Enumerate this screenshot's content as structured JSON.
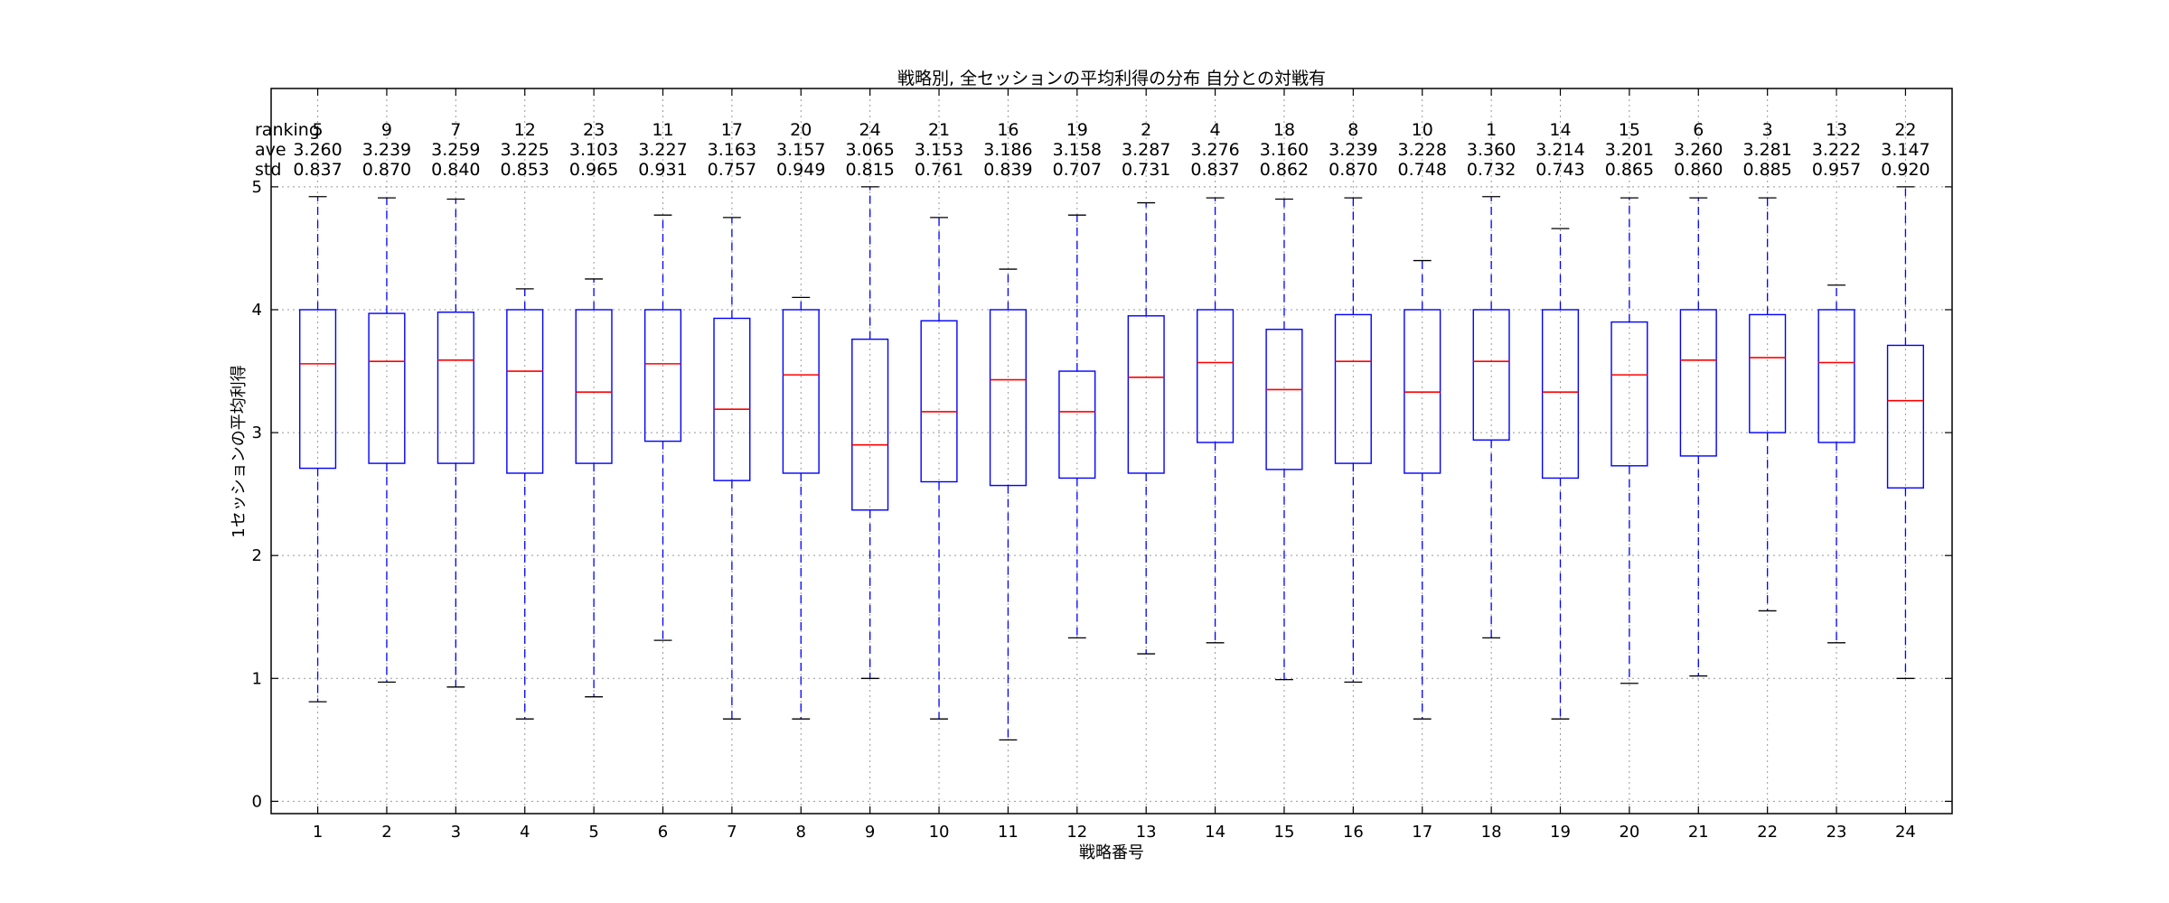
{
  "chart_data": {
    "type": "box",
    "title": "戦略別, 全セッションの平均利得の分布 自分との対戦有",
    "xlabel": "戦略番号",
    "ylabel": "1セッションの平均利得",
    "ylim": [
      -0.1,
      5.8
    ],
    "yticks": [
      0,
      1,
      2,
      3,
      4,
      5
    ],
    "grid": true,
    "colors": {
      "box": "#0000ff",
      "median": "#ff0000",
      "whisker": "#0000ff",
      "cap": "#000000",
      "grid": "#999999"
    },
    "stat_labels": {
      "ranking": "ranking",
      "ave": "ave",
      "std": "std"
    },
    "categories": [
      "1",
      "2",
      "3",
      "4",
      "5",
      "6",
      "7",
      "8",
      "9",
      "10",
      "11",
      "12",
      "13",
      "14",
      "15",
      "16",
      "17",
      "18",
      "19",
      "20",
      "21",
      "22",
      "23",
      "24"
    ],
    "ranking": [
      "5",
      "9",
      "7",
      "12",
      "23",
      "11",
      "17",
      "20",
      "24",
      "21",
      "16",
      "19",
      "2",
      "4",
      "18",
      "8",
      "10",
      "1",
      "14",
      "15",
      "6",
      "3",
      "13",
      "22"
    ],
    "ave": [
      "3.260",
      "3.239",
      "3.259",
      "3.225",
      "3.103",
      "3.227",
      "3.163",
      "3.157",
      "3.065",
      "3.153",
      "3.186",
      "3.158",
      "3.287",
      "3.276",
      "3.160",
      "3.239",
      "3.228",
      "3.360",
      "3.214",
      "3.201",
      "3.260",
      "3.281",
      "3.222",
      "3.147"
    ],
    "std": [
      "0.837",
      "0.870",
      "0.840",
      "0.853",
      "0.965",
      "0.931",
      "0.757",
      "0.949",
      "0.815",
      "0.761",
      "0.839",
      "0.707",
      "0.731",
      "0.837",
      "0.862",
      "0.870",
      "0.748",
      "0.732",
      "0.743",
      "0.865",
      "0.860",
      "0.885",
      "0.957",
      "0.920"
    ],
    "boxes": [
      {
        "whislo": 0.81,
        "q1": 2.71,
        "med": 3.56,
        "q3": 4.0,
        "whishi": 4.92
      },
      {
        "whislo": 0.97,
        "q1": 2.75,
        "med": 3.58,
        "q3": 3.97,
        "whishi": 4.91
      },
      {
        "whislo": 0.93,
        "q1": 2.75,
        "med": 3.59,
        "q3": 3.98,
        "whishi": 4.9
      },
      {
        "whislo": 0.67,
        "q1": 2.67,
        "med": 3.5,
        "q3": 4.0,
        "whishi": 4.17
      },
      {
        "whislo": 0.85,
        "q1": 2.75,
        "med": 3.33,
        "q3": 4.0,
        "whishi": 4.25
      },
      {
        "whislo": 1.31,
        "q1": 2.93,
        "med": 3.56,
        "q3": 4.0,
        "whishi": 4.77
      },
      {
        "whislo": 0.67,
        "q1": 2.61,
        "med": 3.19,
        "q3": 3.93,
        "whishi": 4.75
      },
      {
        "whislo": 0.67,
        "q1": 2.67,
        "med": 3.47,
        "q3": 4.0,
        "whishi": 4.1
      },
      {
        "whislo": 1.0,
        "q1": 2.37,
        "med": 2.9,
        "q3": 3.76,
        "whishi": 5.0
      },
      {
        "whislo": 0.67,
        "q1": 2.6,
        "med": 3.17,
        "q3": 3.91,
        "whishi": 4.75
      },
      {
        "whislo": 0.5,
        "q1": 2.57,
        "med": 3.43,
        "q3": 4.0,
        "whishi": 4.33
      },
      {
        "whislo": 1.33,
        "q1": 2.63,
        "med": 3.17,
        "q3": 3.5,
        "whishi": 4.77
      },
      {
        "whislo": 1.2,
        "q1": 2.67,
        "med": 3.45,
        "q3": 3.95,
        "whishi": 4.87
      },
      {
        "whislo": 1.29,
        "q1": 2.92,
        "med": 3.57,
        "q3": 4.0,
        "whishi": 4.91
      },
      {
        "whislo": 0.99,
        "q1": 2.7,
        "med": 3.35,
        "q3": 3.84,
        "whishi": 4.9
      },
      {
        "whislo": 0.97,
        "q1": 2.75,
        "med": 3.58,
        "q3": 3.96,
        "whishi": 4.91
      },
      {
        "whislo": 0.67,
        "q1": 2.67,
        "med": 3.33,
        "q3": 4.0,
        "whishi": 4.4
      },
      {
        "whislo": 1.33,
        "q1": 2.94,
        "med": 3.58,
        "q3": 4.0,
        "whishi": 4.92
      },
      {
        "whislo": 0.67,
        "q1": 2.63,
        "med": 3.33,
        "q3": 4.0,
        "whishi": 4.66
      },
      {
        "whislo": 0.96,
        "q1": 2.73,
        "med": 3.47,
        "q3": 3.9,
        "whishi": 4.91
      },
      {
        "whislo": 1.02,
        "q1": 2.81,
        "med": 3.59,
        "q3": 4.0,
        "whishi": 4.91
      },
      {
        "whislo": 1.55,
        "q1": 3.0,
        "med": 3.61,
        "q3": 3.96,
        "whishi": 4.91
      },
      {
        "whislo": 1.29,
        "q1": 2.92,
        "med": 3.57,
        "q3": 4.0,
        "whishi": 4.2
      },
      {
        "whislo": 1.0,
        "q1": 2.55,
        "med": 3.26,
        "q3": 3.71,
        "whishi": 5.0
      }
    ]
  }
}
